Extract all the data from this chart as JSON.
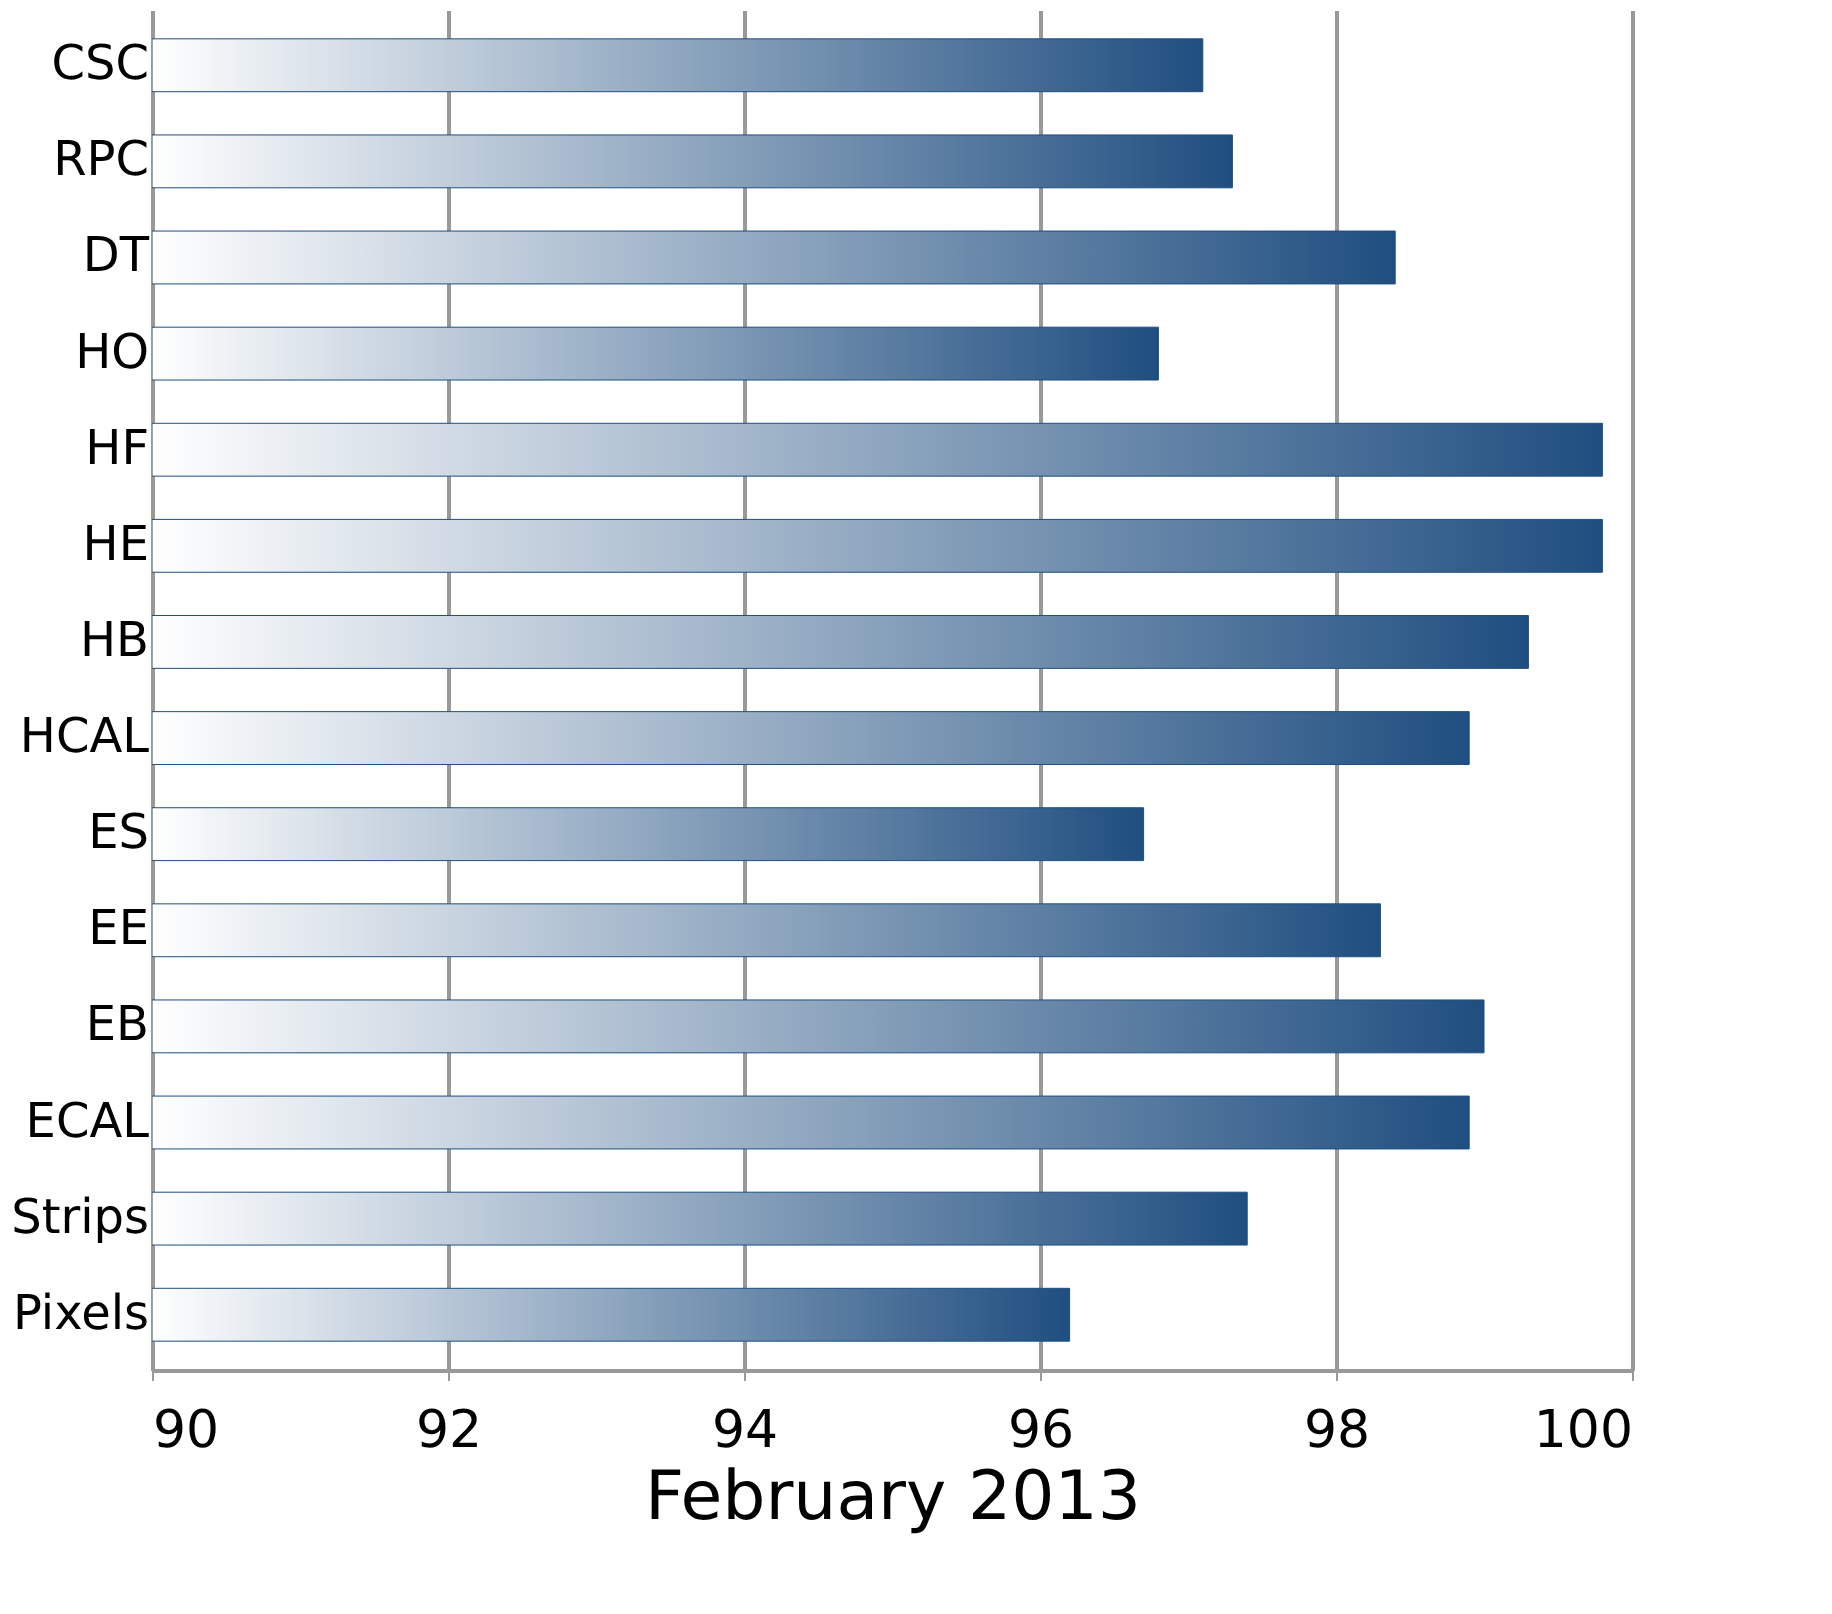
{
  "chart_data": {
    "type": "bar",
    "orientation": "horizontal",
    "xlabel": "February  2013",
    "categories": [
      "CSC",
      "RPC",
      "DT",
      "HO",
      "HF",
      "HE",
      "HB",
      "HCAL",
      "ES",
      "EE",
      "EB",
      "ECAL",
      "Strips",
      "Pixels"
    ],
    "values": [
      97.1,
      97.3,
      98.4,
      96.8,
      99.8,
      99.8,
      99.3,
      98.9,
      96.7,
      98.3,
      99.0,
      98.9,
      97.4,
      96.2
    ],
    "color": "#1f4e80",
    "xlim": [
      90,
      100
    ],
    "xticks": [
      90,
      92,
      94,
      96,
      98,
      100
    ],
    "grid": "x"
  }
}
